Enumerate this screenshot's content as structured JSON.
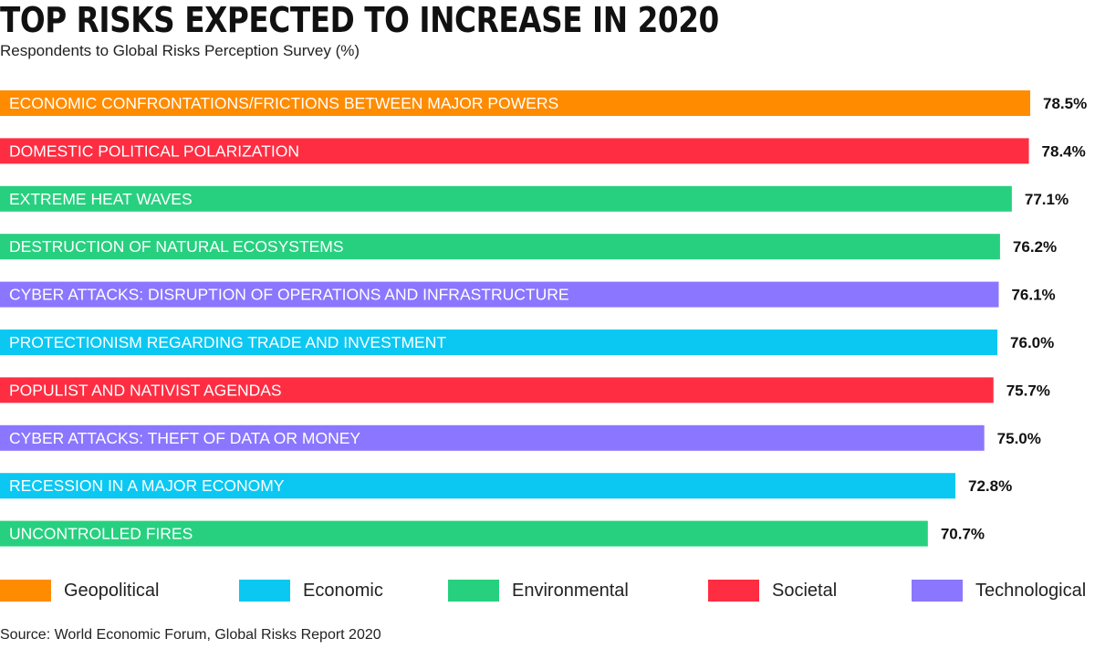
{
  "title": "TOP RISKS EXPECTED TO INCREASE IN 2020",
  "subtitle": "Respondents to Global Risks Perception Survey (%)",
  "source": "Source: World Economic Forum, Global Risks Report 2020",
  "colors": {
    "Geopolitical": "#ff8c00",
    "Economic": "#0bc8f2",
    "Environmental": "#27d07f",
    "Societal": "#ff2d42",
    "Technological": "#8b76ff"
  },
  "legend": [
    {
      "label": "Geopolitical",
      "color": "#ff8c00"
    },
    {
      "label": "Economic",
      "color": "#0bc8f2"
    },
    {
      "label": "Environmental",
      "color": "#27d07f"
    },
    {
      "label": "Societal",
      "color": "#ff2d42"
    },
    {
      "label": "Technological",
      "color": "#8b76ff"
    }
  ],
  "chart_data": {
    "type": "bar",
    "orientation": "horizontal",
    "title": "TOP RISKS EXPECTED TO INCREASE IN 2020",
    "subtitle": "Respondents to Global Risks Perception Survey (%)",
    "xlabel": "",
    "ylabel": "",
    "unit": "%",
    "grid": false,
    "legend_position": "bottom",
    "categories": [
      "ECONOMIC CONFRONTATIONS/FRICTIONS BETWEEN MAJOR POWERS",
      "DOMESTIC POLITICAL POLARIZATION",
      "EXTREME HEAT WAVES",
      "DESTRUCTION OF NATURAL ECOSYSTEMS",
      "CYBER ATTACKS: DISRUPTION OF OPERATIONS AND INFRASTRUCTURE",
      "PROTECTIONISM REGARDING TRADE AND INVESTMENT",
      "POPULIST AND NATIVIST AGENDAS",
      "CYBER ATTACKS: THEFT OF DATA OR MONEY",
      "RECESSION IN A MAJOR ECONOMY",
      "UNCONTROLLED FIRES"
    ],
    "values": [
      78.5,
      78.4,
      77.1,
      76.2,
      76.1,
      76.0,
      75.7,
      75.0,
      72.8,
      70.7
    ],
    "value_labels": [
      "78.5%",
      "78.4%",
      "77.1%",
      "76.2%",
      "76.1%",
      "76.0%",
      "75.7%",
      "75.0%",
      "72.8%",
      "70.7%"
    ],
    "groups": [
      "Geopolitical",
      "Societal",
      "Environmental",
      "Environmental",
      "Technological",
      "Economic",
      "Societal",
      "Technological",
      "Economic",
      "Environmental"
    ]
  }
}
